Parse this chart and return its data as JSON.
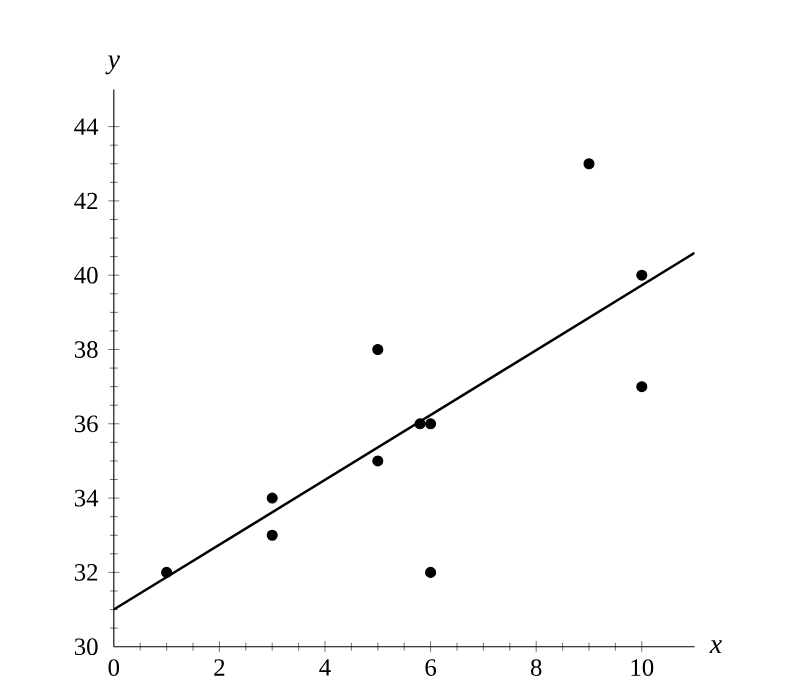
{
  "chart_data": {
    "type": "scatter",
    "xlabel": "x",
    "ylabel": "y",
    "xlim": [
      0,
      11
    ],
    "ylim": [
      30,
      45
    ],
    "xticks": [
      0,
      2,
      4,
      6,
      8,
      10
    ],
    "yticks": [
      30,
      32,
      34,
      36,
      38,
      40,
      42,
      44
    ],
    "grid": false,
    "series": [
      {
        "marker": "circle",
        "color": "#000000",
        "x": [
          1,
          3,
          3,
          5,
          5,
          5.8,
          6,
          6,
          9,
          10,
          10
        ],
        "values": [
          32,
          34,
          33,
          38,
          35,
          36,
          36,
          32,
          43,
          40,
          37
        ]
      },
      {
        "type": "line",
        "marker": "none",
        "color": "#000000",
        "x": [
          0,
          11
        ],
        "values": [
          31.0,
          40.6
        ]
      }
    ]
  }
}
